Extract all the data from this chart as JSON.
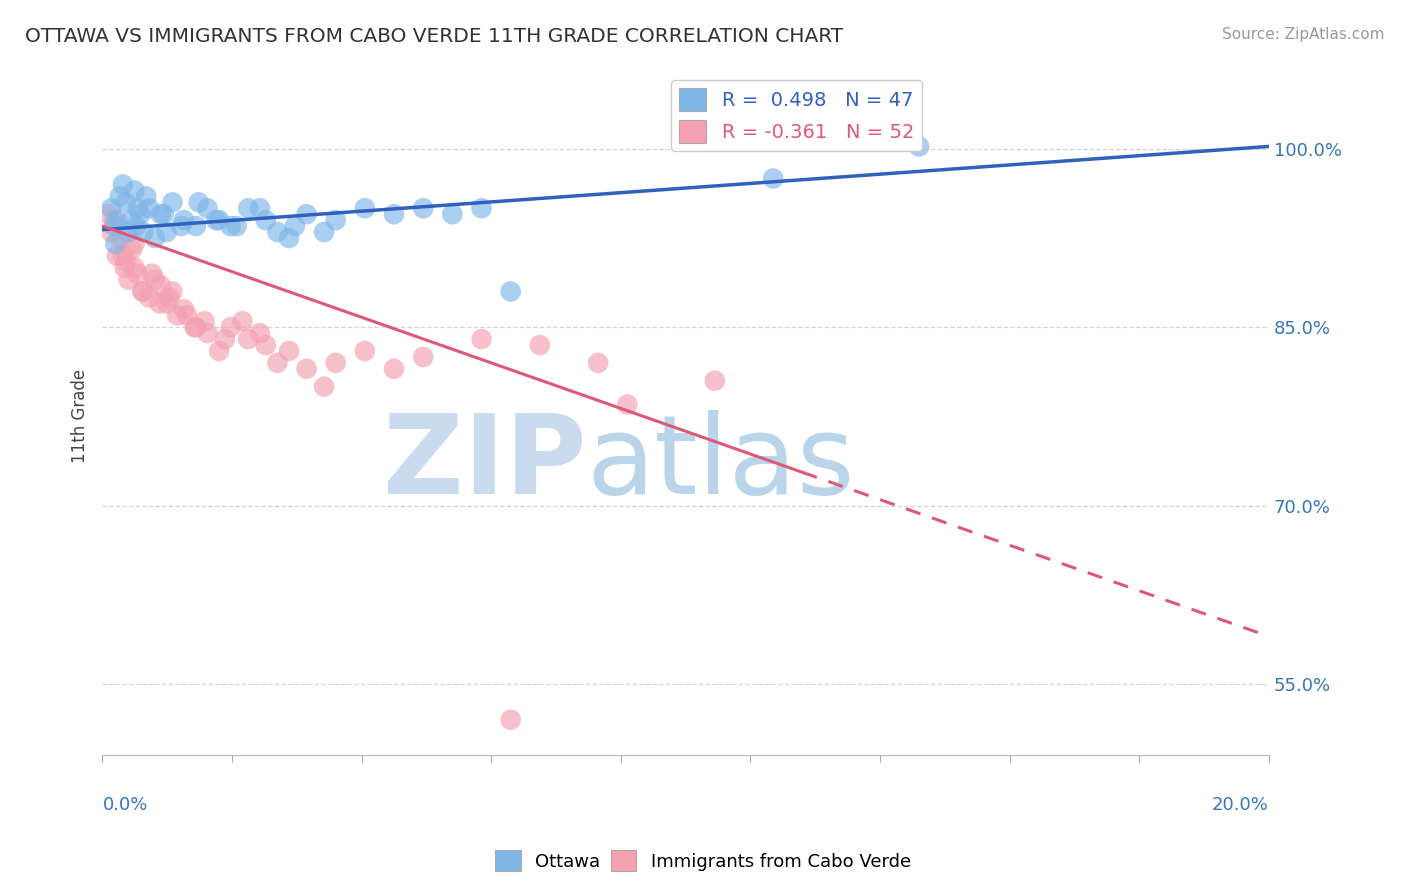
{
  "title": "OTTAWA VS IMMIGRANTS FROM CABO VERDE 11TH GRADE CORRELATION CHART",
  "source": "Source: ZipAtlas.com",
  "ylabel": "11th Grade",
  "ytick_values": [
    55.0,
    70.0,
    85.0,
    100.0
  ],
  "ytick_labels": [
    "55.0%",
    "70.0%",
    "85.0%",
    "100.0%"
  ],
  "xlim": [
    0.0,
    20.0
  ],
  "ylim": [
    49.0,
    106.0
  ],
  "ottawa_R": 0.498,
  "ottawa_N": 47,
  "cabo_R": -0.361,
  "cabo_N": 52,
  "ottawa_color": "#7EB6E8",
  "cabo_color": "#F4A0B0",
  "trendline_blue": "#3060C0",
  "trendline_pink": "#E05878",
  "background_color": "#FFFFFF",
  "grid_color": "#CCCCCC",
  "ottawa_line_y0": 93.2,
  "ottawa_line_y20": 100.2,
  "cabo_line_y0": 93.5,
  "cabo_line_y12": 72.5,
  "cabo_line_y20": 59.0,
  "cabo_dash_start_x": 12.0,
  "ottawa_scatter_x": [
    0.15,
    0.2,
    0.25,
    0.3,
    0.35,
    0.4,
    0.5,
    0.55,
    0.6,
    0.65,
    0.7,
    0.8,
    0.9,
    1.0,
    1.1,
    1.2,
    1.4,
    1.6,
    1.8,
    2.0,
    2.2,
    2.5,
    2.8,
    3.0,
    3.2,
    3.5,
    3.8,
    4.0,
    4.5,
    5.0,
    5.5,
    6.0,
    6.5,
    7.0,
    0.45,
    0.75,
    1.05,
    1.35,
    1.65,
    1.95,
    2.3,
    2.7,
    3.3,
    0.22,
    0.58,
    11.5,
    14.0
  ],
  "ottawa_scatter_y": [
    95.0,
    93.5,
    94.0,
    96.0,
    97.0,
    95.5,
    94.0,
    96.5,
    95.0,
    94.5,
    93.0,
    95.0,
    92.5,
    94.5,
    93.0,
    95.5,
    94.0,
    93.5,
    95.0,
    94.0,
    93.5,
    95.0,
    94.0,
    93.0,
    92.5,
    94.5,
    93.0,
    94.0,
    95.0,
    94.5,
    95.0,
    94.5,
    95.0,
    88.0,
    93.0,
    96.0,
    94.5,
    93.5,
    95.5,
    94.0,
    93.5,
    95.0,
    93.5,
    92.0,
    93.5,
    97.5,
    100.2
  ],
  "cabo_scatter_x": [
    0.1,
    0.15,
    0.2,
    0.25,
    0.3,
    0.35,
    0.4,
    0.45,
    0.5,
    0.55,
    0.6,
    0.7,
    0.8,
    0.9,
    1.0,
    1.1,
    1.2,
    1.4,
    1.6,
    1.8,
    2.0,
    2.2,
    2.5,
    2.8,
    3.0,
    3.5,
    4.0,
    4.5,
    5.5,
    6.5,
    7.5,
    8.5,
    0.25,
    0.55,
    0.85,
    1.15,
    1.45,
    1.75,
    2.1,
    2.4,
    2.7,
    3.2,
    0.38,
    0.68,
    0.98,
    1.28,
    1.58,
    3.8,
    5.0,
    7.0,
    9.0,
    10.5
  ],
  "cabo_scatter_y": [
    94.5,
    93.0,
    94.0,
    93.5,
    92.5,
    91.0,
    90.5,
    89.0,
    91.5,
    90.0,
    89.5,
    88.0,
    87.5,
    89.0,
    88.5,
    87.0,
    88.0,
    86.5,
    85.0,
    84.5,
    83.0,
    85.0,
    84.0,
    83.5,
    82.0,
    81.5,
    82.0,
    83.0,
    82.5,
    84.0,
    83.5,
    82.0,
    91.0,
    92.0,
    89.5,
    87.5,
    86.0,
    85.5,
    84.0,
    85.5,
    84.5,
    83.0,
    90.0,
    88.0,
    87.0,
    86.0,
    85.0,
    80.0,
    81.5,
    52.0,
    78.5,
    80.5
  ],
  "legend_label_ottawa": "R =  0.498   N = 47",
  "legend_label_cabo": "R = -0.361   N = 52",
  "bottom_label_ottawa": "Ottawa",
  "bottom_label_cabo": "Immigrants from Cabo Verde"
}
